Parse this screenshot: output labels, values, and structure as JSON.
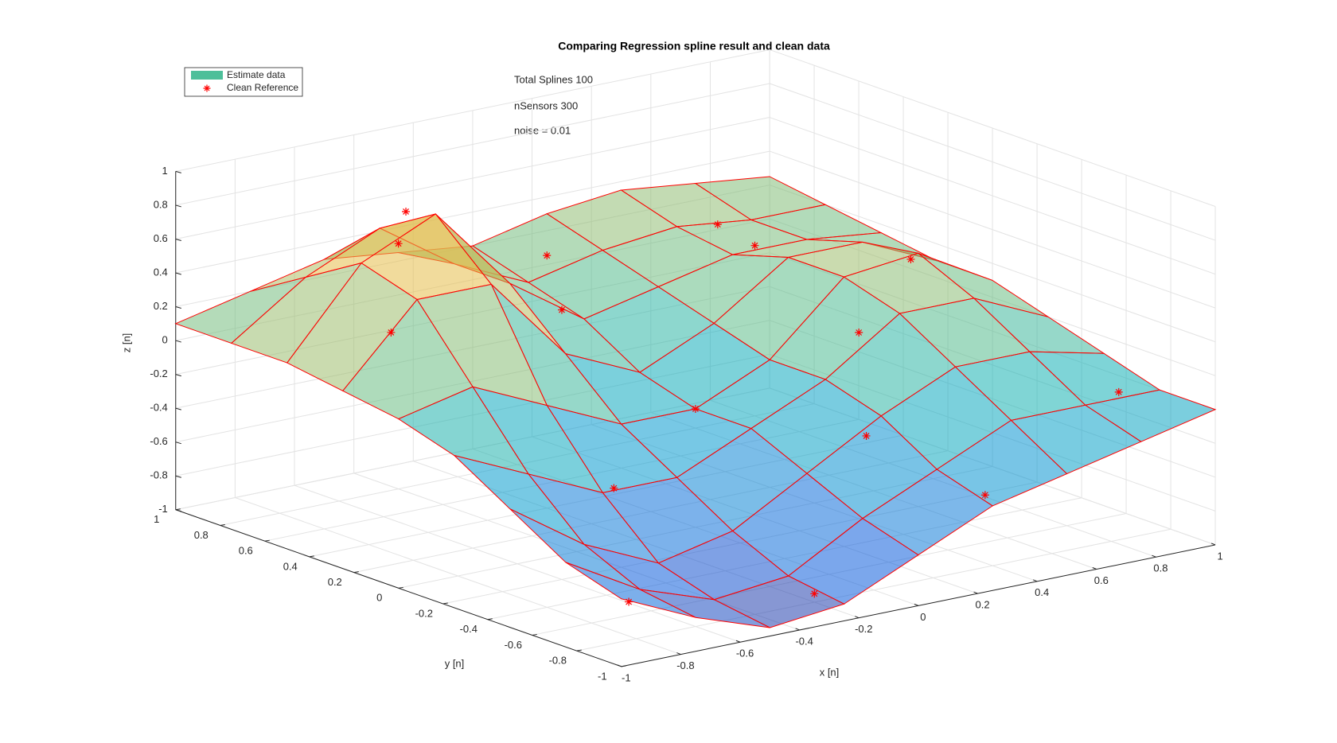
{
  "chart_data": {
    "type": "surface",
    "title": "Comparing Regression spline result and clean data",
    "annotations": [
      "Total Splines 100",
      "nSensors 300",
      "noise = 0.01"
    ],
    "xlabel": "x [n]",
    "ylabel": "y [n]",
    "zlabel": "z [n]",
    "xlim": [
      -1,
      1
    ],
    "ylim": [
      -1,
      1
    ],
    "zlim": [
      -1,
      1
    ],
    "xticks": [
      -1,
      -0.8,
      -0.6,
      -0.4,
      -0.2,
      0,
      0.2,
      0.4,
      0.6,
      0.8,
      1
    ],
    "yticks": [
      -1,
      -0.8,
      -0.6,
      -0.4,
      -0.2,
      0,
      0.2,
      0.4,
      0.6,
      0.8,
      1
    ],
    "zticks": [
      -1,
      -0.8,
      -0.6,
      -0.4,
      -0.2,
      0,
      0.2,
      0.4,
      0.6,
      0.8,
      1
    ],
    "grid": true,
    "legend": "upper left",
    "series": [
      {
        "name": "Estimate data",
        "color": "#4dbf9a",
        "edge_color": "#ff0000",
        "colormap": "parula",
        "x": [
          -1,
          -0.75,
          -0.5,
          -0.25,
          0,
          0.25,
          0.5,
          0.75,
          1
        ],
        "y": [
          -1,
          -0.75,
          -0.5,
          -0.25,
          0,
          0.25,
          0.5,
          0.75,
          1
        ],
        "z": [
          [
            -0.6,
            -0.8,
            -0.95,
            -0.9,
            -0.7,
            -0.5,
            -0.4,
            -0.3,
            -0.2
          ],
          [
            -0.5,
            -0.75,
            -0.9,
            -0.85,
            -0.6,
            -0.4,
            -0.2,
            -0.2,
            -0.2
          ],
          [
            -0.3,
            -0.6,
            -0.8,
            -0.7,
            -0.45,
            -0.2,
            0.0,
            0.0,
            -0.1
          ],
          [
            -0.1,
            -0.3,
            -0.5,
            -0.5,
            -0.3,
            -0.1,
            0.2,
            0.2,
            0.0
          ],
          [
            0.0,
            0.1,
            -0.1,
            -0.3,
            -0.3,
            -0.1,
            0.3,
            0.35,
            0.1
          ],
          [
            0.05,
            0.5,
            0.5,
            0.0,
            -0.2,
            0.0,
            0.3,
            0.3,
            0.1
          ],
          [
            0.1,
            0.6,
            0.8,
            0.3,
            0.0,
            0.1,
            0.2,
            0.2,
            0.15
          ],
          [
            0.1,
            0.4,
            0.6,
            0.3,
            0.1,
            0.2,
            0.25,
            0.2,
            0.2
          ],
          [
            0.1,
            0.2,
            0.3,
            0.25,
            0.2,
            0.3,
            0.35,
            0.3,
            0.25
          ]
        ]
      },
      {
        "name": "Clean Reference",
        "color": "#ff0000",
        "x": [
          -0.6,
          -0.3,
          0.2,
          -0.2,
          0.5,
          0.8,
          -0.8,
          0.0,
          0.4,
          -0.5,
          0.9,
          0.1,
          -0.9,
          0.6,
          -0.4,
          0.3
        ],
        "y": [
          0.5,
          0.2,
          -0.5,
          -0.8,
          0.4,
          0.1,
          0.3,
          0.0,
          -0.2,
          -0.3,
          -0.7,
          0.8,
          -0.9,
          0.7,
          0.8,
          -0.9
        ],
        "z": [
          0.85,
          0.3,
          -0.3,
          -0.95,
          0.3,
          0.25,
          0.3,
          -0.3,
          0.1,
          -0.45,
          -0.2,
          0.2,
          -0.7,
          0.25,
          0.45,
          -0.5
        ]
      }
    ]
  }
}
